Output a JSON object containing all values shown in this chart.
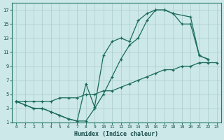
{
  "xlabel": "Humidex (Indice chaleur)",
  "bg_color": "#cce8e8",
  "grid_color": "#aacccc",
  "line_color": "#1a6b5a",
  "xlim": [
    -0.5,
    23.5
  ],
  "ylim": [
    1,
    18
  ],
  "xticks": [
    0,
    1,
    2,
    3,
    4,
    5,
    6,
    7,
    8,
    9,
    10,
    11,
    12,
    13,
    14,
    15,
    16,
    17,
    18,
    19,
    20,
    21,
    22,
    23
  ],
  "yticks": [
    1,
    3,
    5,
    7,
    9,
    11,
    13,
    15,
    17
  ],
  "line1_x": [
    0,
    1,
    2,
    3,
    4,
    5,
    6,
    7,
    8,
    9,
    10,
    11,
    12,
    13,
    14,
    15,
    16,
    17,
    18,
    19,
    20,
    21,
    22,
    23
  ],
  "line1_y": [
    4.0,
    4.0,
    4.0,
    4.0,
    4.0,
    4.5,
    4.5,
    4.5,
    5.0,
    5.0,
    5.5,
    5.5,
    6.0,
    6.5,
    7.0,
    7.5,
    8.0,
    8.5,
    8.5,
    9.0,
    9.0,
    9.5,
    9.5,
    9.5
  ],
  "line2_x": [
    0,
    1,
    2,
    3,
    4,
    5,
    6,
    7,
    8,
    9,
    10,
    11,
    12,
    13,
    14,
    15,
    16,
    17,
    18,
    19,
    20,
    21,
    22
  ],
  "line2_y": [
    4.0,
    3.5,
    3.0,
    3.0,
    2.5,
    2.0,
    1.5,
    1.2,
    1.2,
    3.0,
    5.0,
    7.5,
    10.0,
    12.0,
    13.0,
    15.5,
    17.0,
    17.0,
    16.5,
    15.0,
    15.0,
    10.5,
    10.0
  ],
  "line3_x": [
    0,
    1,
    2,
    3,
    4,
    5,
    6,
    7,
    8,
    9,
    10,
    11,
    12,
    13,
    14,
    15,
    16,
    17,
    18,
    20,
    21,
    22
  ],
  "line3_y": [
    4.0,
    3.5,
    3.0,
    3.0,
    2.5,
    2.0,
    1.5,
    1.2,
    6.5,
    3.2,
    10.5,
    12.5,
    13.0,
    12.5,
    15.5,
    16.5,
    17.0,
    17.0,
    16.5,
    16.0,
    10.5,
    10.0
  ]
}
